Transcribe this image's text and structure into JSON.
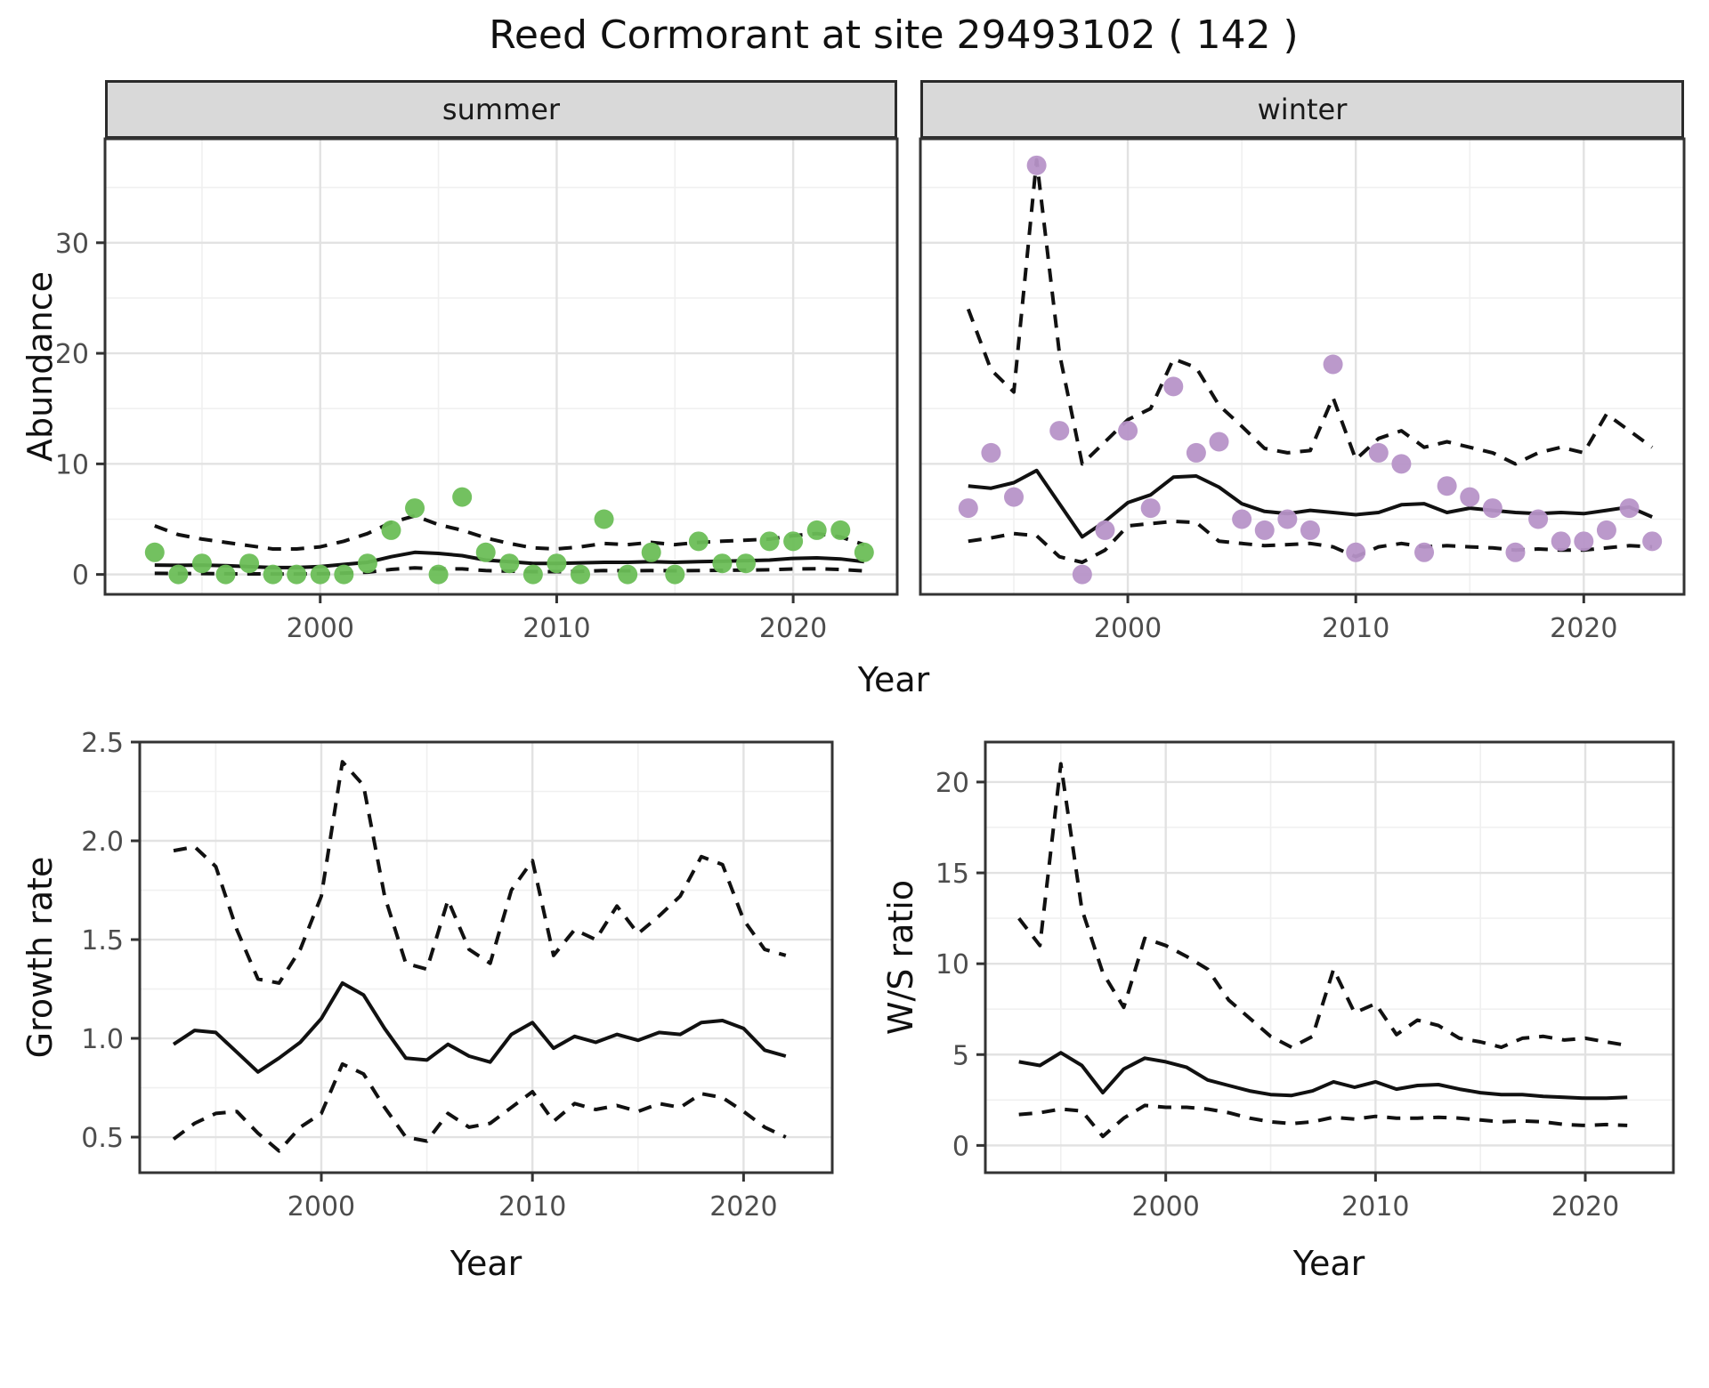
{
  "title": "Reed Cormorant at site 29493102 ( 142 )",
  "axes": {
    "year_label_top": "Year",
    "year_label_growth": "Year",
    "year_label_ws": "Year",
    "abundance_label": "Abundance",
    "growth_rate_label": "Growth rate",
    "ws_ratio_label": "W/S ratio"
  },
  "facets": {
    "summer": "summer",
    "winter": "winter"
  },
  "colors": {
    "summer_points": "#6CBE57",
    "winter_points": "#B793C8",
    "line": "#111111",
    "grid_major": "#e2e2e2",
    "grid_minor": "#f0f0f0",
    "tick": "#333333",
    "panel_border": "#333333",
    "strip_bg": "#d9d9d9"
  },
  "chart_data": {
    "type": "line+scatter",
    "description": "Observed abundance points with modelled fit (solid) and dashed confidence bounds, faceted by season; derived growth rate and winter/summer ratio below.",
    "panels": {
      "summer": {
        "xlim": [
          1990.9,
          2024.4
        ],
        "ylim": [
          -1.8,
          39.4
        ],
        "xticks": [
          2000,
          2010,
          2020
        ],
        "xtick_labels": [
          "2000",
          "2010",
          "2020"
        ],
        "xminor": [
          1995,
          2005,
          2015
        ],
        "yticks": [
          0,
          10,
          20,
          30
        ],
        "ytick_labels": [
          "0",
          "10",
          "20",
          "30"
        ],
        "yminor": [
          5,
          15,
          25,
          35
        ],
        "show_ylabels": true,
        "point_color": "#6CBE57",
        "years": [
          1993,
          1994,
          1995,
          1996,
          1997,
          1998,
          1999,
          2000,
          2001,
          2002,
          2003,
          2004,
          2005,
          2006,
          2007,
          2008,
          2009,
          2010,
          2011,
          2012,
          2013,
          2014,
          2015,
          2016,
          2017,
          2018,
          2019,
          2020,
          2021,
          2022,
          2023
        ],
        "points": [
          2,
          0,
          1,
          0,
          1,
          0,
          0,
          0,
          0,
          1,
          4,
          6,
          0,
          7,
          2,
          1,
          0,
          1,
          0,
          5,
          0,
          2,
          0,
          3,
          1,
          1,
          3,
          3,
          4,
          4,
          2
        ],
        "fit": [
          0.85,
          0.82,
          0.85,
          0.8,
          0.7,
          0.62,
          0.62,
          0.72,
          0.9,
          1.1,
          1.6,
          2.0,
          1.9,
          1.7,
          1.3,
          1.15,
          1.0,
          1.0,
          1.05,
          1.1,
          1.1,
          1.15,
          1.1,
          1.15,
          1.2,
          1.25,
          1.3,
          1.45,
          1.5,
          1.4,
          1.15
        ],
        "upper_ci": [
          4.4,
          3.6,
          3.2,
          2.9,
          2.6,
          2.3,
          2.3,
          2.5,
          3.0,
          3.7,
          4.7,
          5.3,
          4.5,
          4.0,
          3.3,
          2.8,
          2.4,
          2.3,
          2.5,
          2.8,
          2.7,
          2.9,
          2.7,
          2.9,
          3.0,
          3.1,
          3.2,
          3.5,
          3.7,
          3.4,
          2.7
        ],
        "lower_ci": [
          0.1,
          0.08,
          0.08,
          0.06,
          0.05,
          0.04,
          0.04,
          0.06,
          0.12,
          0.2,
          0.45,
          0.6,
          0.5,
          0.5,
          0.35,
          0.3,
          0.25,
          0.25,
          0.28,
          0.35,
          0.33,
          0.35,
          0.33,
          0.35,
          0.37,
          0.4,
          0.42,
          0.5,
          0.52,
          0.45,
          0.32
        ]
      },
      "winter": {
        "xlim": [
          1990.9,
          2024.4
        ],
        "ylim": [
          -1.8,
          39.4
        ],
        "xticks": [
          2000,
          2010,
          2020
        ],
        "xtick_labels": [
          "2000",
          "2010",
          "2020"
        ],
        "xminor": [
          1995,
          2005,
          2015
        ],
        "yticks": [
          0,
          10,
          20,
          30
        ],
        "ytick_labels": [
          "0",
          "10",
          "20",
          "30"
        ],
        "yminor": [
          5,
          15,
          25,
          35
        ],
        "show_ylabels": false,
        "point_color": "#B793C8",
        "years": [
          1993,
          1994,
          1995,
          1996,
          1997,
          1998,
          1999,
          2000,
          2001,
          2002,
          2003,
          2004,
          2005,
          2006,
          2007,
          2008,
          2009,
          2010,
          2011,
          2012,
          2013,
          2014,
          2015,
          2016,
          2017,
          2018,
          2019,
          2020,
          2021,
          2022,
          2023
        ],
        "points": [
          6,
          11,
          7,
          37,
          13,
          0,
          4,
          13,
          6,
          17,
          11,
          12,
          5,
          4,
          5,
          4,
          19,
          2,
          11,
          10,
          2,
          8,
          7,
          6,
          2,
          5,
          3,
          3,
          4,
          6,
          3
        ],
        "fit": [
          8.0,
          7.8,
          8.3,
          9.4,
          6.4,
          3.4,
          4.8,
          6.5,
          7.2,
          8.8,
          8.9,
          7.9,
          6.4,
          5.7,
          5.5,
          5.8,
          5.6,
          5.4,
          5.6,
          6.3,
          6.4,
          5.6,
          6.0,
          5.8,
          5.6,
          5.5,
          5.6,
          5.5,
          5.8,
          6.1,
          5.2
        ],
        "upper_ci": [
          24,
          18.5,
          16.5,
          37.5,
          20,
          10,
          12,
          14,
          15,
          19.5,
          18.7,
          15.3,
          13.4,
          11.4,
          11,
          11.2,
          16,
          10.4,
          12.3,
          13,
          11.5,
          12,
          11.5,
          11,
          10,
          11,
          11.5,
          11,
          14.5,
          13,
          11.5
        ],
        "lower_ci": [
          3.0,
          3.3,
          3.7,
          3.5,
          1.6,
          1.1,
          2.2,
          4.4,
          4.6,
          4.8,
          4.7,
          3.0,
          2.8,
          2.6,
          2.7,
          2.8,
          2.5,
          1.6,
          2.5,
          2.8,
          2.5,
          2.6,
          2.5,
          2.4,
          2.2,
          2.3,
          2.2,
          2.2,
          2.4,
          2.6,
          2.5
        ]
      },
      "growth_rate": {
        "xlim": [
          1991.4,
          2024.2
        ],
        "ylim": [
          0.32,
          2.5
        ],
        "xticks": [
          2000,
          2010,
          2020
        ],
        "xtick_labels": [
          "2000",
          "2010",
          "2020"
        ],
        "xminor": [
          1995,
          2005,
          2015
        ],
        "yticks": [
          0.5,
          1.0,
          1.5,
          2.0,
          2.5
        ],
        "ytick_labels": [
          "0.5",
          "1.0",
          "1.5",
          "2.0",
          "2.5"
        ],
        "yminor": [
          0.75,
          1.25,
          1.75,
          2.25
        ],
        "show_ylabels": true,
        "years": [
          1993,
          1994,
          1995,
          1996,
          1997,
          1998,
          1999,
          2000,
          2001,
          2002,
          2003,
          2004,
          2005,
          2006,
          2007,
          2008,
          2009,
          2010,
          2011,
          2012,
          2013,
          2014,
          2015,
          2016,
          2017,
          2018,
          2019,
          2020,
          2021,
          2022
        ],
        "fit": [
          0.97,
          1.04,
          1.03,
          0.93,
          0.83,
          0.9,
          0.98,
          1.1,
          1.28,
          1.22,
          1.05,
          0.9,
          0.89,
          0.97,
          0.91,
          0.88,
          1.02,
          1.08,
          0.95,
          1.01,
          0.98,
          1.02,
          0.99,
          1.03,
          1.02,
          1.08,
          1.09,
          1.05,
          0.94,
          0.91
        ],
        "upper_ci": [
          1.95,
          1.97,
          1.87,
          1.55,
          1.3,
          1.28,
          1.45,
          1.72,
          2.4,
          2.28,
          1.72,
          1.38,
          1.35,
          1.7,
          1.45,
          1.38,
          1.75,
          1.9,
          1.42,
          1.55,
          1.5,
          1.67,
          1.53,
          1.62,
          1.72,
          1.92,
          1.88,
          1.6,
          1.45,
          1.42
        ],
        "lower_ci": [
          0.49,
          0.57,
          0.62,
          0.63,
          0.52,
          0.43,
          0.55,
          0.62,
          0.87,
          0.82,
          0.65,
          0.5,
          0.48,
          0.62,
          0.55,
          0.57,
          0.65,
          0.73,
          0.58,
          0.67,
          0.64,
          0.66,
          0.63,
          0.67,
          0.65,
          0.72,
          0.7,
          0.63,
          0.55,
          0.5
        ]
      },
      "ws_ratio": {
        "xlim": [
          1991.4,
          2024.2
        ],
        "ylim": [
          -1.5,
          22.2
        ],
        "xticks": [
          2000,
          2010,
          2020
        ],
        "xtick_labels": [
          "2000",
          "2010",
          "2020"
        ],
        "xminor": [
          1995,
          2005,
          2015
        ],
        "yticks": [
          0,
          5,
          10,
          15,
          20
        ],
        "ytick_labels": [
          "0",
          "5",
          "10",
          "15",
          "20"
        ],
        "yminor": [
          2.5,
          7.5,
          12.5,
          17.5
        ],
        "show_ylabels": true,
        "years": [
          1993,
          1994,
          1995,
          1996,
          1997,
          1998,
          1999,
          2000,
          2001,
          2002,
          2003,
          2004,
          2005,
          2006,
          2007,
          2008,
          2009,
          2010,
          2011,
          2012,
          2013,
          2014,
          2015,
          2016,
          2017,
          2018,
          2019,
          2020,
          2021,
          2022
        ],
        "fit": [
          4.6,
          4.4,
          5.1,
          4.4,
          2.9,
          4.2,
          4.8,
          4.6,
          4.3,
          3.6,
          3.3,
          3.0,
          2.8,
          2.75,
          3.0,
          3.5,
          3.2,
          3.5,
          3.1,
          3.3,
          3.35,
          3.1,
          2.9,
          2.8,
          2.8,
          2.7,
          2.65,
          2.6,
          2.6,
          2.65
        ],
        "upper_ci": [
          12.5,
          11.0,
          21.0,
          13.0,
          9.5,
          7.6,
          11.4,
          11.0,
          10.4,
          9.7,
          8.0,
          7.0,
          6.0,
          5.4,
          6.0,
          9.7,
          7.3,
          7.8,
          6.1,
          6.9,
          6.6,
          5.9,
          5.7,
          5.4,
          5.9,
          6.0,
          5.8,
          5.9,
          5.7,
          5.5
        ],
        "lower_ci": [
          1.7,
          1.8,
          2.0,
          1.9,
          0.5,
          1.5,
          2.2,
          2.1,
          2.1,
          2.0,
          1.8,
          1.5,
          1.3,
          1.2,
          1.3,
          1.55,
          1.45,
          1.6,
          1.5,
          1.5,
          1.55,
          1.5,
          1.4,
          1.3,
          1.35,
          1.3,
          1.15,
          1.1,
          1.15,
          1.1
        ]
      }
    }
  }
}
